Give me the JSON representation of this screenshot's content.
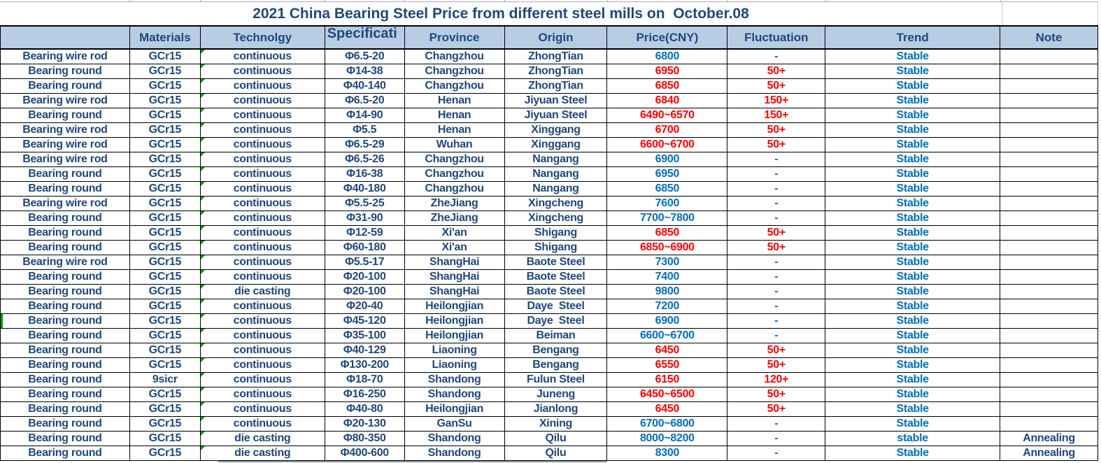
{
  "title": "2021 China Bearing Steel Price from different steel mills on  October.08",
  "columns": [
    "",
    "Materials",
    "Technolgy",
    "Specificati",
    "Province",
    "Origin",
    "Price(CNY)",
    "Fluctuation",
    "Trend",
    "Note"
  ],
  "colors": {
    "navy": "#1F497D",
    "blue": "#0070C0",
    "red": "#FF0000",
    "header_bg": "#B8CCE4",
    "indicator_green": "#00A000"
  },
  "rows": [
    {
      "product": "Bearing wire rod",
      "material": "GCr15",
      "technology": "continuous",
      "spec": "Φ6.5-20",
      "province": "Changzhou",
      "origin": "ZhongTian",
      "price": "6800",
      "price_color": "blue",
      "fluctuation": "-",
      "fluctuation_color": "blue",
      "trend": "Stable",
      "note": ""
    },
    {
      "product": "Bearing round",
      "material": "GCr15",
      "technology": "continuous",
      "spec": "Φ14-38",
      "province": "Changzhou",
      "origin": "ZhongTian",
      "price": "6950",
      "price_color": "red",
      "fluctuation": "50+",
      "fluctuation_color": "red",
      "trend": "Stable",
      "note": ""
    },
    {
      "product": "Bearing round",
      "material": "GCr15",
      "technology": "continuous",
      "spec": "Φ40-140",
      "province": "Changzhou",
      "origin": "ZhongTian",
      "price": "6850",
      "price_color": "red",
      "fluctuation": "50+",
      "fluctuation_color": "red",
      "trend": "Stable",
      "note": ""
    },
    {
      "product": "Bearing wire rod",
      "material": "GCr15",
      "technology": "continuous",
      "spec": "Φ6.5-20",
      "province": "Henan",
      "origin": "Jiyuan Steel",
      "price": "6840",
      "price_color": "red",
      "fluctuation": "150+",
      "fluctuation_color": "red",
      "trend": "Stable",
      "note": ""
    },
    {
      "product": "Bearing round",
      "material": "GCr15",
      "technology": "continuous",
      "spec": "Φ14-90",
      "province": "Henan",
      "origin": "Jiyuan Steel",
      "price": "6490~6570",
      "price_color": "red",
      "fluctuation": "150+",
      "fluctuation_color": "red",
      "trend": "Stable",
      "note": ""
    },
    {
      "product": "Bearing wire rod",
      "material": "GCr15",
      "technology": "continuous",
      "spec": "Φ5.5",
      "province": "Henan",
      "origin": "Xinggang",
      "price": "6700",
      "price_color": "red",
      "fluctuation": "50+",
      "fluctuation_color": "red",
      "trend": "Stable",
      "note": ""
    },
    {
      "product": "Bearing wire rod",
      "material": "GCr15",
      "technology": "continuous",
      "spec": "Φ6.5-29",
      "province": "Wuhan",
      "origin": "Xinggang",
      "price": "6600~6700",
      "price_color": "red",
      "fluctuation": "50+",
      "fluctuation_color": "red",
      "trend": "Stable",
      "note": ""
    },
    {
      "product": "Bearing wire rod",
      "material": "GCr15",
      "technology": "continuous",
      "spec": "Φ6.5-26",
      "province": "Changzhou",
      "origin": "Nangang",
      "price": "6900",
      "price_color": "blue",
      "fluctuation": "-",
      "fluctuation_color": "blue",
      "trend": "Stable",
      "note": ""
    },
    {
      "product": "Bearing round",
      "material": "GCr15",
      "technology": "continuous",
      "spec": "Φ16-38",
      "province": "Changzhou",
      "origin": "Nangang",
      "price": "6950",
      "price_color": "blue",
      "fluctuation": "-",
      "fluctuation_color": "blue",
      "trend": "Stable",
      "note": ""
    },
    {
      "product": "Bearing round",
      "material": "GCr15",
      "technology": "continuous",
      "spec": "Φ40-180",
      "province": "Changzhou",
      "origin": "Nangang",
      "price": "6850",
      "price_color": "blue",
      "fluctuation": "-",
      "fluctuation_color": "blue",
      "trend": "Stable",
      "note": ""
    },
    {
      "product": "Bearing wire rod",
      "material": "GCr15",
      "technology": "continuous",
      "spec": "Φ5.5-25",
      "province": "ZheJiang",
      "origin": "Xingcheng",
      "price": "7600",
      "price_color": "blue",
      "fluctuation": "-",
      "fluctuation_color": "blue",
      "trend": "Stable",
      "note": ""
    },
    {
      "product": "Bearing round",
      "material": "GCr15",
      "technology": "continuous",
      "spec": "Φ31-90",
      "province": "ZheJiang",
      "origin": "Xingcheng",
      "price": "7700~7800",
      "price_color": "blue",
      "fluctuation": "-",
      "fluctuation_color": "blue",
      "trend": "Stable",
      "note": ""
    },
    {
      "product": "Bearing round",
      "material": "GCr15",
      "technology": "continuous",
      "spec": "Φ12-59",
      "province": "Xi'an",
      "origin": "Shigang",
      "price": "6850",
      "price_color": "red",
      "fluctuation": "50+",
      "fluctuation_color": "red",
      "trend": "Stable",
      "note": ""
    },
    {
      "product": "Bearing round",
      "material": "GCr15",
      "technology": "continuous",
      "spec": "Φ60-180",
      "province": "Xi'an",
      "origin": "Shigang",
      "price": "6850~6900",
      "price_color": "red",
      "fluctuation": "50+",
      "fluctuation_color": "red",
      "trend": "Stable",
      "note": ""
    },
    {
      "product": "Bearing wire rod",
      "material": "GCr15",
      "technology": "continuous",
      "spec": "Φ5.5-17",
      "province": "ShangHai",
      "origin": "Baote Steel",
      "price": "7300",
      "price_color": "blue",
      "fluctuation": "-",
      "fluctuation_color": "blue",
      "trend": "Stable",
      "note": ""
    },
    {
      "product": "Bearing round",
      "material": "GCr15",
      "technology": "continuous",
      "spec": "Φ20-100",
      "province": "ShangHai",
      "origin": "Baote Steel",
      "price": "7400",
      "price_color": "blue",
      "fluctuation": "-",
      "fluctuation_color": "blue",
      "trend": "Stable",
      "note": ""
    },
    {
      "product": "Bearing round",
      "material": "GCr15",
      "technology": "die casting",
      "spec": "Φ20-100",
      "province": "ShangHai",
      "origin": "Baote Steel",
      "price": "9800",
      "price_color": "blue",
      "fluctuation": "-",
      "fluctuation_color": "blue",
      "trend": "Stable",
      "note": ""
    },
    {
      "product": "Bearing round",
      "material": "GCr15",
      "technology": "continuous",
      "spec": "Φ20-40",
      "province": "Heilongjian",
      "origin": "Daye  Steel",
      "price": "7200",
      "price_color": "blue",
      "fluctuation": "-",
      "fluctuation_color": "blue",
      "trend": "Stable",
      "note": ""
    },
    {
      "product": "Bearing round",
      "material": "GCr15",
      "technology": "continuous",
      "spec": "Φ45-120",
      "province": "Heilongjian",
      "origin": "Daye  Steel",
      "price": "6900",
      "price_color": "blue",
      "fluctuation": "-",
      "fluctuation_color": "blue",
      "trend": "Stable",
      "note": "",
      "left_marker": true
    },
    {
      "product": "Bearing round",
      "material": "GCr15",
      "technology": "continuous",
      "spec": "Φ35-100",
      "province": "Heilongjian",
      "origin": "Beiman",
      "price": "6600~6700",
      "price_color": "blue",
      "fluctuation": "-",
      "fluctuation_color": "blue",
      "trend": "Stable",
      "note": ""
    },
    {
      "product": "Bearing round",
      "material": "GCr15",
      "technology": "continuous",
      "spec": "Φ40-129",
      "province": "Liaoning",
      "origin": "Bengang",
      "price": "6450",
      "price_color": "red",
      "fluctuation": "50+",
      "fluctuation_color": "red",
      "trend": "Stable",
      "note": ""
    },
    {
      "product": "Bearing round",
      "material": "GCr15",
      "technology": "continuous",
      "spec": "Φ130-200",
      "province": "Liaoning",
      "origin": "Bengang",
      "price": "6550",
      "price_color": "red",
      "fluctuation": "50+",
      "fluctuation_color": "red",
      "trend": "Stable",
      "note": ""
    },
    {
      "product": "Bearing round",
      "material": "9sicr",
      "technology": "continuous",
      "spec": "Φ18-70",
      "province": "Shandong",
      "origin": "Fulun Steel",
      "price": "6150",
      "price_color": "red",
      "fluctuation": "120+",
      "fluctuation_color": "red",
      "trend": "Stable",
      "note": ""
    },
    {
      "product": "Bearing round",
      "material": "GCr15",
      "technology": "continuous",
      "spec": "Φ16-250",
      "province": "Shandong",
      "origin": "Juneng",
      "price": "6450~6500",
      "price_color": "red",
      "fluctuation": "50+",
      "fluctuation_color": "red",
      "trend": "Stable",
      "note": ""
    },
    {
      "product": "Bearing round",
      "material": "GCr15",
      "technology": "continuous",
      "spec": "Φ40-80",
      "province": "Heilongjian",
      "origin": "Jianlong",
      "price": "6450",
      "price_color": "red",
      "fluctuation": "50+",
      "fluctuation_color": "red",
      "trend": "Stable",
      "note": ""
    },
    {
      "product": "Bearing round",
      "material": "GCr15",
      "technology": "continuous",
      "spec": "Φ20-130",
      "province": "GanSu",
      "origin": "Xining",
      "price": "6700~6800",
      "price_color": "blue",
      "fluctuation": "-",
      "fluctuation_color": "blue",
      "trend": "Stable",
      "note": ""
    },
    {
      "product": "Bearing round",
      "material": "GCr15",
      "technology": "die casting",
      "spec": "Φ80-350",
      "province": "Shandong",
      "origin": "Qilu",
      "price": "8000~8200",
      "price_color": "blue",
      "fluctuation": "-",
      "fluctuation_color": "blue",
      "trend": "stable",
      "note": "Annealing"
    },
    {
      "product": "Bearing round",
      "material": "GCr15",
      "technology": "die casting",
      "spec": "Φ400-600",
      "province": "Shandong",
      "origin": "Qilu",
      "price": "8300",
      "price_color": "blue",
      "fluctuation": "-",
      "fluctuation_color": "blue",
      "trend": "Stable",
      "note": "Annealing"
    }
  ]
}
